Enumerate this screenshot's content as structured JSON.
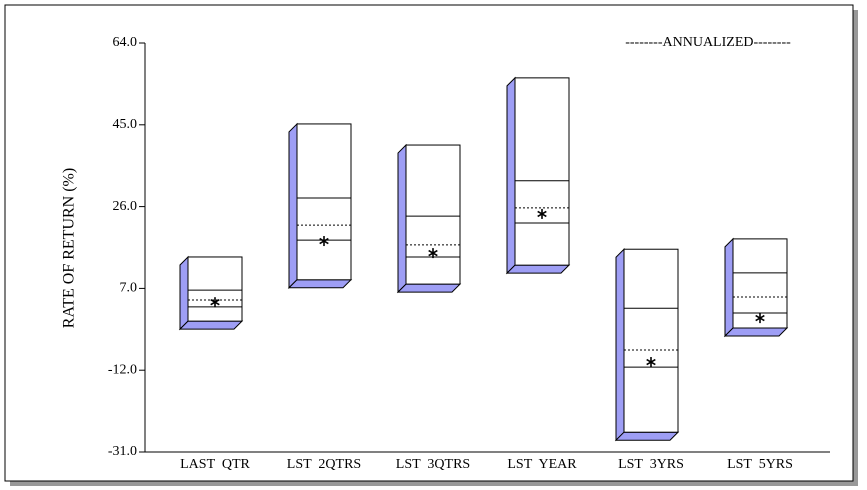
{
  "chart_data": {
    "type": "floating_box",
    "annotation": "--------ANNUALIZED--------",
    "y_label": "RATE OF RETURN (%)",
    "categories": [
      "LAST  QTR",
      "LST  2QTRS",
      "LST  3QTRS",
      "LST  YEAR",
      "LST  3YRS",
      "LST  5YRS"
    ],
    "top": [
      14.3,
      45.2,
      40.3,
      55.9,
      16.1,
      18.5
    ],
    "upper_line": [
      6.6,
      28.0,
      23.8,
      32.0,
      2.4,
      10.6
    ],
    "median": [
      4.3,
      21.7,
      17.1,
      25.7,
      -7.3,
      5.0
    ],
    "lower_line": [
      2.7,
      18.2,
      14.3,
      22.2,
      -11.3,
      1.3
    ],
    "bottom": [
      -0.6,
      9.0,
      8.0,
      12.4,
      -26.4,
      -2.2
    ],
    "fund": [
      3.8,
      18.0,
      15.2,
      24.3,
      -10.1,
      0.1
    ],
    "side_color": "#9e9ef5",
    "ylim": [
      -31,
      64
    ],
    "yticks": [
      {
        "value": -31,
        "label": "-31.0"
      },
      {
        "value": -12,
        "label": "-12.0"
      },
      {
        "value": 7,
        "label": "7.0"
      },
      {
        "value": 26,
        "label": "26.0"
      },
      {
        "value": 45,
        "label": "45.0"
      },
      {
        "value": 64,
        "label": "64.0"
      }
    ]
  }
}
